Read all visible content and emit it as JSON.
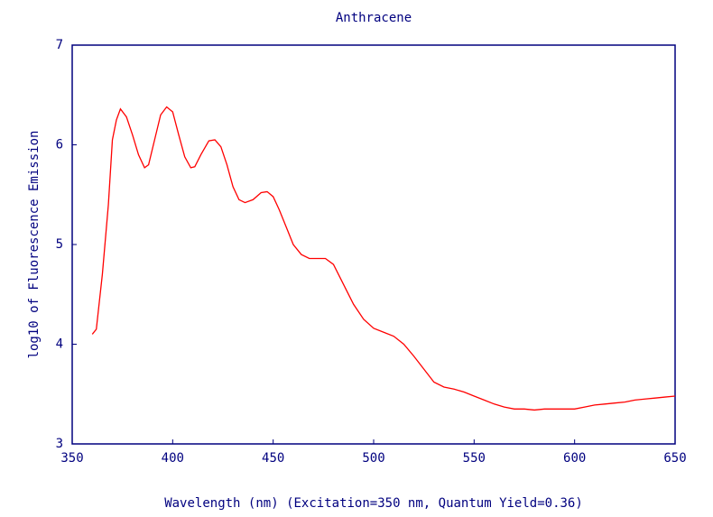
{
  "chart_data": {
    "type": "line",
    "title": "Anthracene",
    "x_label": "Wavelength (nm) (Excitation=350 nm, Quantum Yield=0.36)",
    "y_label": "log10 of Fluorescence Emission",
    "xlim": [
      350,
      650
    ],
    "ylim": [
      3,
      7
    ],
    "xticks": [
      350,
      400,
      450,
      500,
      550,
      600,
      650
    ],
    "yticks": [
      3,
      4,
      5,
      6,
      7
    ],
    "axis_color": "#00007f",
    "series": [
      {
        "name": "Anthracene",
        "color": "#ff0000",
        "x": [
          360,
          362,
          365,
          368,
          370,
          372,
          374,
          377,
          380,
          383,
          386,
          388,
          391,
          394,
          397,
          400,
          403,
          406,
          409,
          411,
          414,
          418,
          421,
          424,
          427,
          430,
          433,
          436,
          440,
          444,
          447,
          450,
          453,
          457,
          460,
          464,
          468,
          472,
          476,
          480,
          485,
          490,
          495,
          500,
          505,
          510,
          515,
          520,
          525,
          530,
          535,
          540,
          545,
          550,
          555,
          560,
          565,
          570,
          575,
          580,
          585,
          590,
          595,
          600,
          605,
          610,
          615,
          620,
          625,
          630,
          635,
          640,
          645,
          650
        ],
        "values": [
          4.1,
          4.15,
          4.7,
          5.4,
          6.05,
          6.25,
          6.36,
          6.28,
          6.1,
          5.9,
          5.77,
          5.8,
          6.05,
          6.3,
          6.38,
          6.33,
          6.1,
          5.88,
          5.77,
          5.78,
          5.9,
          6.04,
          6.05,
          5.98,
          5.8,
          5.58,
          5.45,
          5.42,
          5.45,
          5.52,
          5.53,
          5.48,
          5.35,
          5.15,
          5.0,
          4.9,
          4.86,
          4.86,
          4.86,
          4.8,
          4.6,
          4.4,
          4.25,
          4.16,
          4.12,
          4.08,
          4.0,
          3.88,
          3.75,
          3.62,
          3.57,
          3.55,
          3.52,
          3.48,
          3.44,
          3.4,
          3.37,
          3.35,
          3.35,
          3.34,
          3.35,
          3.35,
          3.35,
          3.35,
          3.37,
          3.39,
          3.4,
          3.41,
          3.42,
          3.44,
          3.45,
          3.46,
          3.47,
          3.48
        ]
      }
    ]
  }
}
